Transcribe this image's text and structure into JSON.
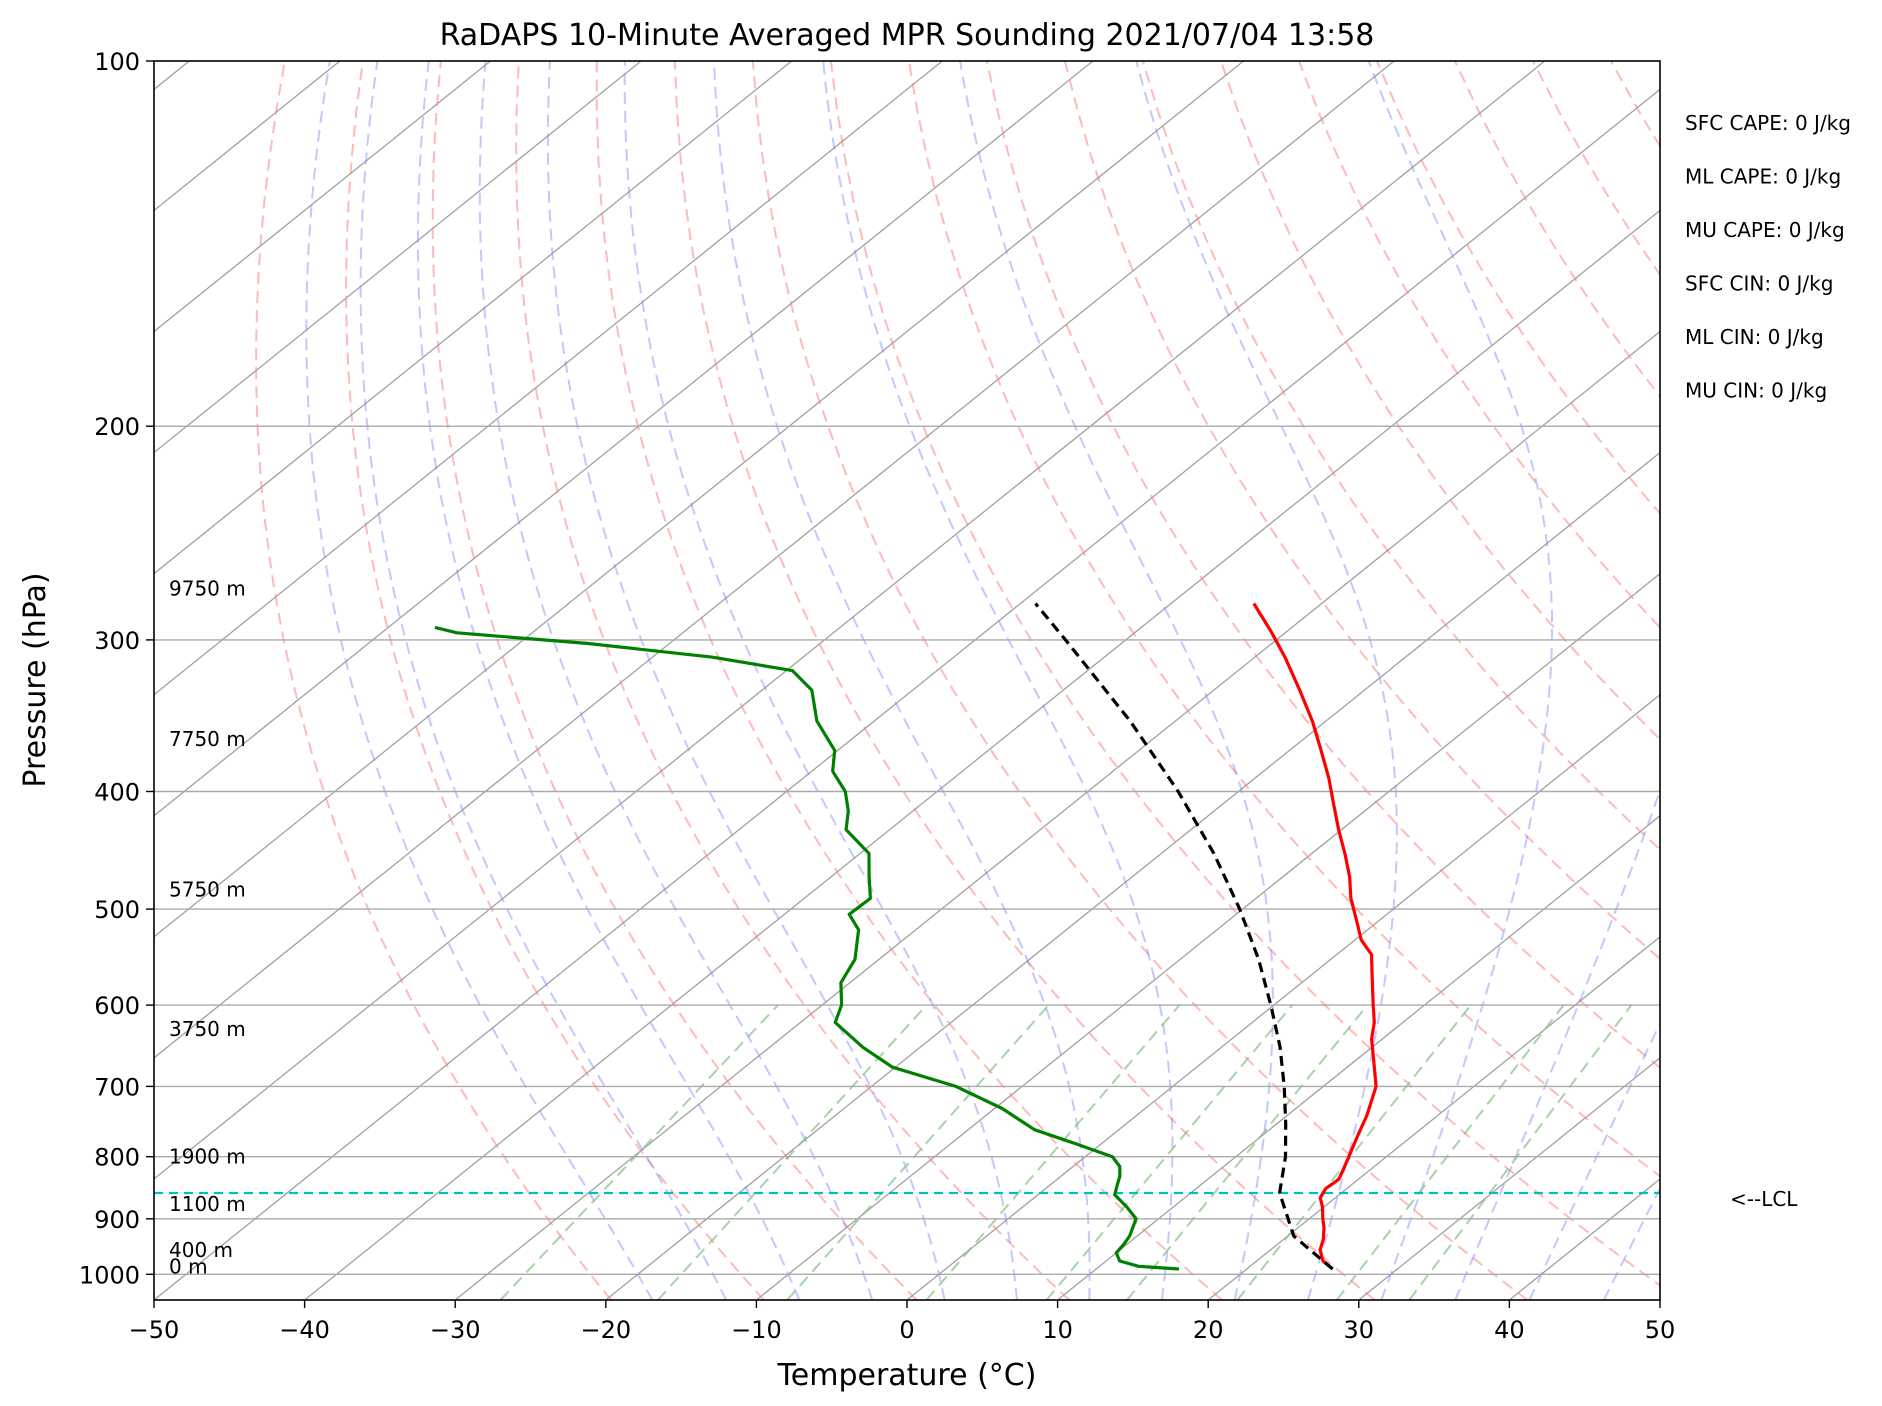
{
  "chart_data": {
    "type": "line",
    "title": "RaDAPS 10-Minute Averaged MPR Sounding 2021/07/04 13:58",
    "xlabel": "Temperature (°C)",
    "ylabel": "Pressure (hPa)",
    "xlim": [
      -50,
      50
    ],
    "ylim": [
      1050,
      100
    ],
    "y_scale": "log",
    "x_ticks": [
      "−50",
      "−40",
      "−30",
      "−20",
      "−10",
      "0",
      "10",
      "20",
      "30",
      "40",
      "50"
    ],
    "y_ticks": [
      "100",
      "200",
      "300",
      "400",
      "500",
      "600",
      "700",
      "800",
      "900",
      "1000"
    ],
    "grid": true,
    "series": [
      {
        "role": "temperature",
        "color": "#ff0000",
        "points": [
          {
            "p": 990,
            "t": 25.7
          },
          {
            "p": 975,
            "t": 24.4
          },
          {
            "p": 955,
            "t": 23.3
          },
          {
            "p": 935,
            "t": 22.6
          },
          {
            "p": 915,
            "t": 21.7
          },
          {
            "p": 900,
            "t": 20.9
          },
          {
            "p": 880,
            "t": 19.9
          },
          {
            "p": 865,
            "t": 19.0
          },
          {
            "p": 850,
            "t": 18.6
          },
          {
            "p": 835,
            "t": 18.7
          },
          {
            "p": 820,
            "t": 18.2
          },
          {
            "p": 800,
            "t": 17.5
          },
          {
            "p": 770,
            "t": 16.4
          },
          {
            "p": 740,
            "t": 15.3
          },
          {
            "p": 700,
            "t": 13.5
          },
          {
            "p": 665,
            "t": 11.1
          },
          {
            "p": 640,
            "t": 9.3
          },
          {
            "p": 620,
            "t": 8.1
          },
          {
            "p": 600,
            "t": 6.6
          },
          {
            "p": 570,
            "t": 4.3
          },
          {
            "p": 545,
            "t": 2.3
          },
          {
            "p": 530,
            "t": 0.4
          },
          {
            "p": 510,
            "t": -1.6
          },
          {
            "p": 490,
            "t": -3.7
          },
          {
            "p": 470,
            "t": -5.6
          },
          {
            "p": 450,
            "t": -7.8
          },
          {
            "p": 430,
            "t": -10.2
          },
          {
            "p": 410,
            "t": -12.6
          },
          {
            "p": 390,
            "t": -15.1
          },
          {
            "p": 370,
            "t": -17.9
          },
          {
            "p": 350,
            "t": -20.9
          },
          {
            "p": 330,
            "t": -24.3
          },
          {
            "p": 310,
            "t": -28.0
          },
          {
            "p": 295,
            "t": -31.1
          },
          {
            "p": 280,
            "t": -34.5
          }
        ]
      },
      {
        "role": "dewpoint",
        "color": "#008000",
        "points": [
          {
            "p": 990,
            "t": 15.5
          },
          {
            "p": 985,
            "t": 12.6
          },
          {
            "p": 975,
            "t": 10.9
          },
          {
            "p": 960,
            "t": 10.0
          },
          {
            "p": 945,
            "t": 9.8
          },
          {
            "p": 930,
            "t": 9.5
          },
          {
            "p": 900,
            "t": 8.5
          },
          {
            "p": 880,
            "t": 6.9
          },
          {
            "p": 860,
            "t": 5.1
          },
          {
            "p": 845,
            "t": 4.5
          },
          {
            "p": 830,
            "t": 3.9
          },
          {
            "p": 815,
            "t": 3.1
          },
          {
            "p": 800,
            "t": 1.8
          },
          {
            "p": 780,
            "t": -1.8
          },
          {
            "p": 760,
            "t": -5.6
          },
          {
            "p": 730,
            "t": -9.5
          },
          {
            "p": 700,
            "t": -14.4
          },
          {
            "p": 675,
            "t": -20.2
          },
          {
            "p": 650,
            "t": -23.8
          },
          {
            "p": 620,
            "t": -27.7
          },
          {
            "p": 600,
            "t": -28.7
          },
          {
            "p": 575,
            "t": -30.6
          },
          {
            "p": 550,
            "t": -31.6
          },
          {
            "p": 520,
            "t": -33.8
          },
          {
            "p": 505,
            "t": -35.7
          },
          {
            "p": 490,
            "t": -35.6
          },
          {
            "p": 470,
            "t": -37.5
          },
          {
            "p": 450,
            "t": -39.4
          },
          {
            "p": 430,
            "t": -42.9
          },
          {
            "p": 415,
            "t": -44.3
          },
          {
            "p": 400,
            "t": -46.1
          },
          {
            "p": 385,
            "t": -48.6
          },
          {
            "p": 370,
            "t": -50.2
          },
          {
            "p": 350,
            "t": -53.8
          },
          {
            "p": 330,
            "t": -56.7
          },
          {
            "p": 318,
            "t": -59.6
          },
          {
            "p": 310,
            "t": -66.0
          },
          {
            "p": 302,
            "t": -75.5
          },
          {
            "p": 296,
            "t": -85.0
          },
          {
            "p": 293,
            "t": -86.9
          }
        ]
      },
      {
        "role": "parcel",
        "color": "#000000",
        "points": [
          {
            "p": 990,
            "t": 25.7
          },
          {
            "p": 930,
            "t": 20.4
          },
          {
            "p": 857,
            "t": 15.9
          },
          {
            "p": 800,
            "t": 13.3
          },
          {
            "p": 750,
            "t": 10.5
          },
          {
            "p": 700,
            "t": 7.4
          },
          {
            "p": 650,
            "t": 3.9
          },
          {
            "p": 600,
            "t": -0.2
          },
          {
            "p": 550,
            "t": -4.8
          },
          {
            "p": 500,
            "t": -10.2
          },
          {
            "p": 450,
            "t": -16.5
          },
          {
            "p": 400,
            "t": -24.0
          },
          {
            "p": 350,
            "t": -33.0
          },
          {
            "p": 300,
            "t": -44.0
          },
          {
            "p": 280,
            "t": -49.0
          }
        ]
      }
    ],
    "lcl": {
      "p": 857,
      "label": "<--LCL"
    },
    "height_labels": [
      {
        "p": 985,
        "label": "0 m"
      },
      {
        "p": 955,
        "label": "400 m"
      },
      {
        "p": 875,
        "label": "1100 m"
      },
      {
        "p": 800,
        "label": "1900 m"
      },
      {
        "p": 628,
        "label": "3750 m"
      },
      {
        "p": 482,
        "label": "5750 m"
      },
      {
        "p": 362,
        "label": "7750 m"
      },
      {
        "p": 272,
        "label": "9750 m"
      }
    ],
    "annotations": [
      "SFC CAPE: 0 J/kg",
      "ML CAPE: 0 J/kg",
      "MU CAPE: 0 J/kg",
      "SFC CIN: 0 J/kg",
      "ML CIN: 0 J/kg",
      "MU CIN: 0 J/kg"
    ],
    "colors": {
      "dry_adiabat": "#ff8080",
      "moist_adiabat": "#8080ff",
      "mixing_ratio": "#80c080",
      "isotherm": "#a0a0a0",
      "lcl_line": "#00bfbf"
    }
  }
}
